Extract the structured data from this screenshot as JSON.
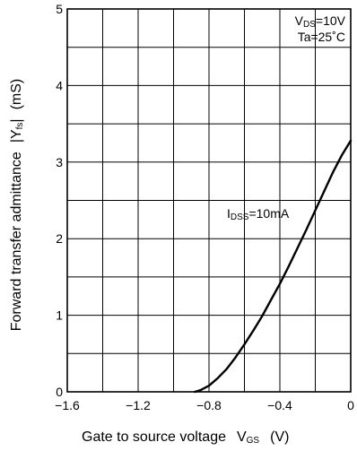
{
  "chart_data": {
    "type": "line",
    "xlabel": {
      "text": "Gate to source voltage",
      "symbol": "V",
      "symbol_sub": "GS",
      "unit": "(V)"
    },
    "ylabel": {
      "text": "Forward transfer admittance",
      "symbol": "|Y",
      "symbol_sub": "fs",
      "symbol_end": "|",
      "unit": "(mS)"
    },
    "xlim": [
      -1.6,
      0
    ],
    "ylim": [
      0,
      5
    ],
    "x_ticks": [
      {
        "value": -1.6,
        "label": "−1.6"
      },
      {
        "value": -1.2,
        "label": "−1.2"
      },
      {
        "value": -0.8,
        "label": "−0.8"
      },
      {
        "value": -0.4,
        "label": "−0.4"
      },
      {
        "value": 0,
        "label": "0"
      }
    ],
    "y_ticks": [
      {
        "value": 0,
        "label": "0"
      },
      {
        "value": 1,
        "label": "1"
      },
      {
        "value": 2,
        "label": "2"
      },
      {
        "value": 3,
        "label": "3"
      },
      {
        "value": 4,
        "label": "4"
      },
      {
        "value": 5,
        "label": "5"
      }
    ],
    "x_grid_step": 0.2,
    "y_grid_step": 0.5,
    "grid": true,
    "conditions": {
      "line1": {
        "prefix": "V",
        "sub": "DS",
        "suffix": "=10V"
      },
      "line2": "Ta=25˚C"
    },
    "series": [
      {
        "name": "IDSS=10mA",
        "label": {
          "prefix": "I",
          "sub": "DSS",
          "suffix": "=10mA"
        },
        "x": [
          -0.88,
          -0.85,
          -0.8,
          -0.75,
          -0.7,
          -0.65,
          -0.6,
          -0.55,
          -0.5,
          -0.45,
          -0.4,
          -0.35,
          -0.3,
          -0.25,
          -0.2,
          -0.15,
          -0.1,
          -0.05,
          0.0
        ],
        "y": [
          0.0,
          0.02,
          0.08,
          0.18,
          0.3,
          0.45,
          0.62,
          0.8,
          0.99,
          1.2,
          1.41,
          1.64,
          1.88,
          2.12,
          2.37,
          2.62,
          2.87,
          3.09,
          3.28
        ]
      }
    ]
  }
}
